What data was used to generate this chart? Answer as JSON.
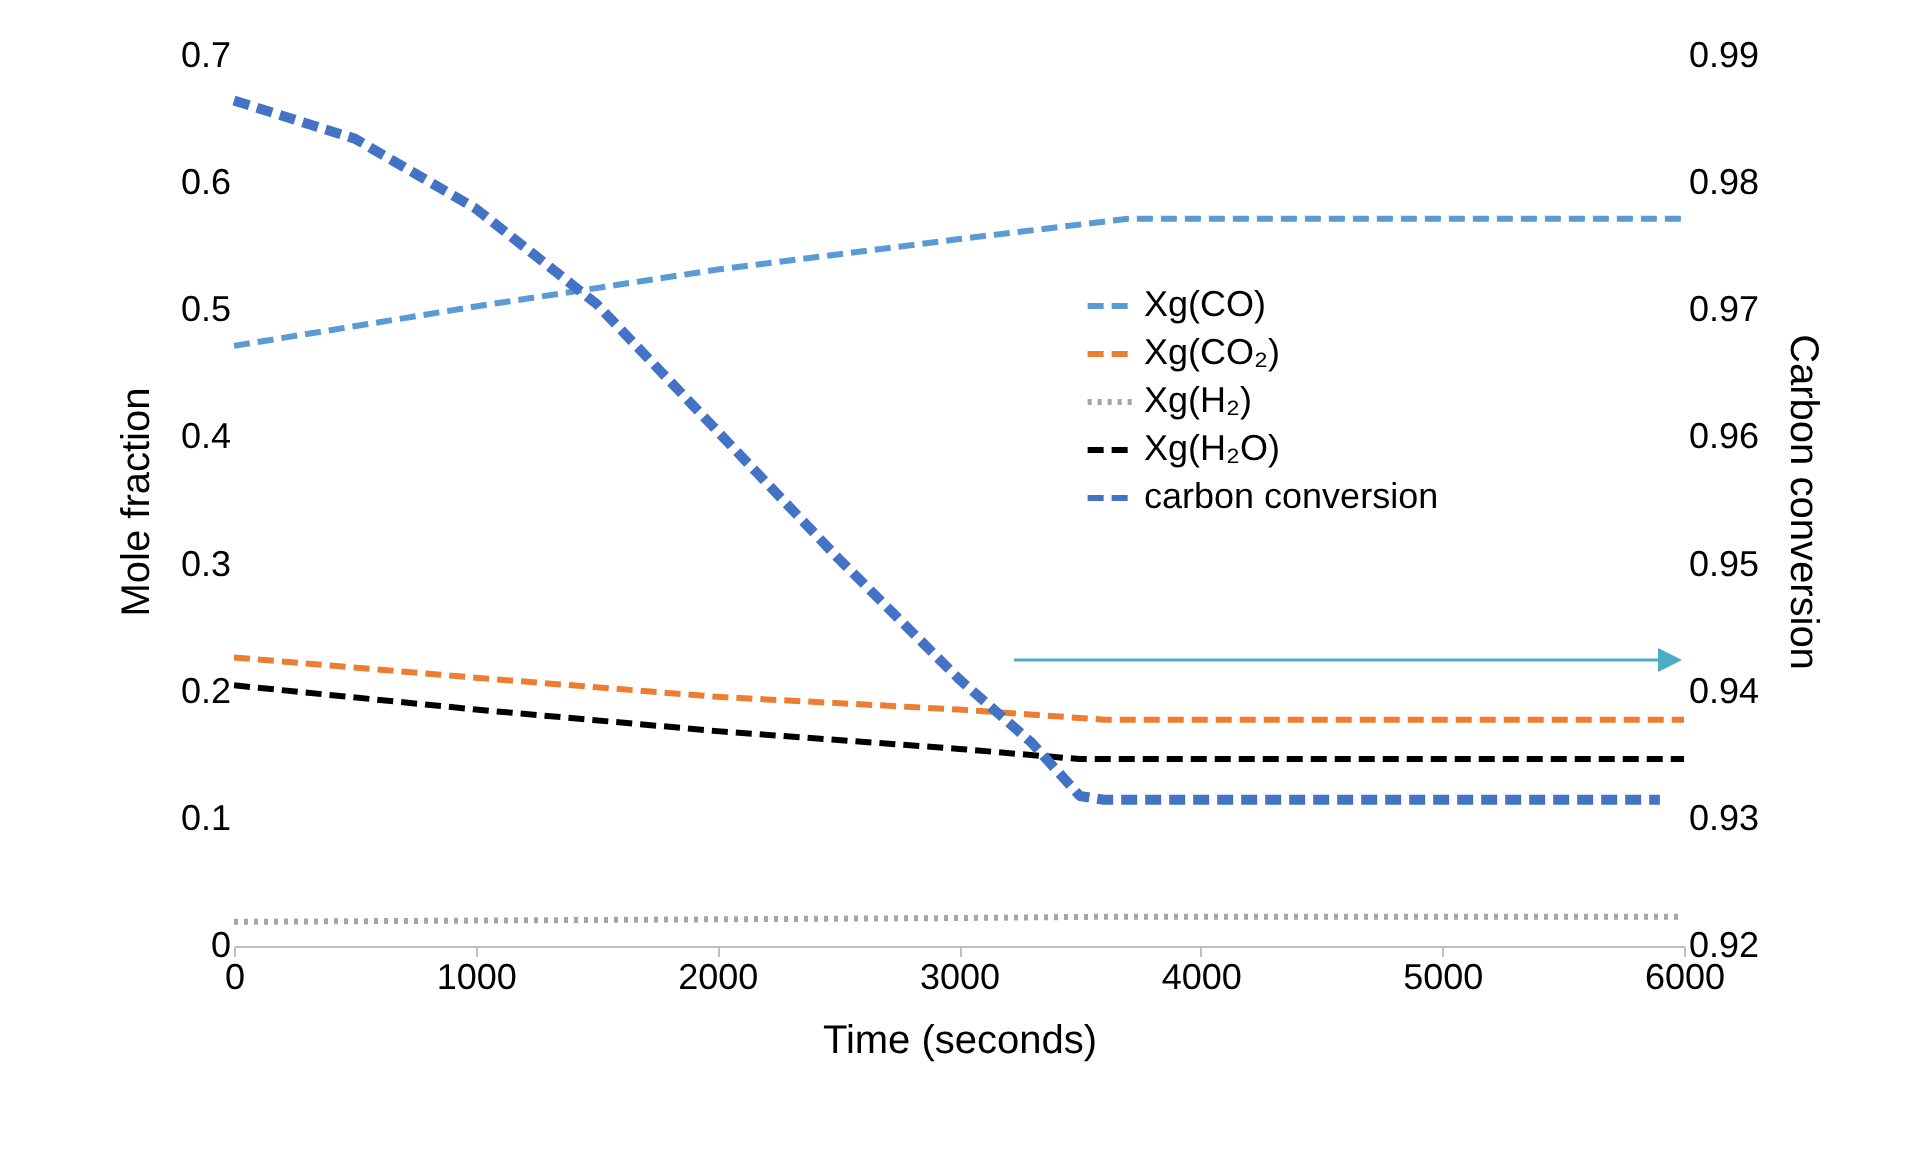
{
  "chart_data": {
    "type": "line",
    "xlabel": "Time (seconds)",
    "ylabel": "Mole fraction",
    "y2label": "Carbon conversion",
    "xlim": [
      0,
      6000
    ],
    "xticks": [
      0,
      1000,
      2000,
      3000,
      4000,
      5000,
      6000
    ],
    "ylim": [
      0,
      0.7
    ],
    "yticks": [
      0,
      0.1,
      0.2,
      0.3,
      0.4,
      0.5,
      0.6,
      0.7
    ],
    "y2lim": [
      0.92,
      0.99
    ],
    "y2ticks": [
      0.92,
      0.93,
      0.94,
      0.95,
      0.96,
      0.97,
      0.98,
      0.99
    ],
    "grid": false,
    "legend": "right",
    "marker": "none",
    "series": [
      {
        "name": "Xg(CO)",
        "color": "#5b9bd5",
        "line_style": "dashed",
        "x": [
          0,
          1000,
          2000,
          3000,
          3700,
          6000
        ],
        "values": [
          0.472,
          0.503,
          0.532,
          0.556,
          0.572,
          0.572
        ]
      },
      {
        "name": "Xg(CO₂)",
        "color": "#ed7d31",
        "line_style": "dashed",
        "x": [
          0,
          1000,
          2000,
          3000,
          3600,
          6000
        ],
        "values": [
          0.227,
          0.211,
          0.196,
          0.186,
          0.178,
          0.178
        ]
      },
      {
        "name": "Xg(H₂)",
        "color": "#a5a5a5",
        "line_style": "dotted",
        "x": [
          0,
          1000,
          2000,
          3000,
          3600,
          6000
        ],
        "values": [
          0.019,
          0.02,
          0.021,
          0.022,
          0.023,
          0.023
        ]
      },
      {
        "name": "Xg(H₂O)",
        "color": "#000000",
        "line_style": "dashed",
        "x": [
          0,
          1000,
          2000,
          3000,
          3500,
          6000
        ],
        "values": [
          0.205,
          0.186,
          0.169,
          0.155,
          0.147,
          0.147
        ]
      },
      {
        "name": "carbon conversion",
        "color": "#4472c4",
        "line_style": "dashed",
        "axis": "y2",
        "x": [
          0,
          500,
          1000,
          1500,
          2000,
          2500,
          3000,
          3300,
          3500,
          3600,
          5900
        ],
        "values": [
          0.9865,
          0.9835,
          0.978,
          0.9705,
          0.9605,
          0.9505,
          0.941,
          0.936,
          0.9318,
          0.9315,
          0.9315
        ]
      }
    ]
  }
}
